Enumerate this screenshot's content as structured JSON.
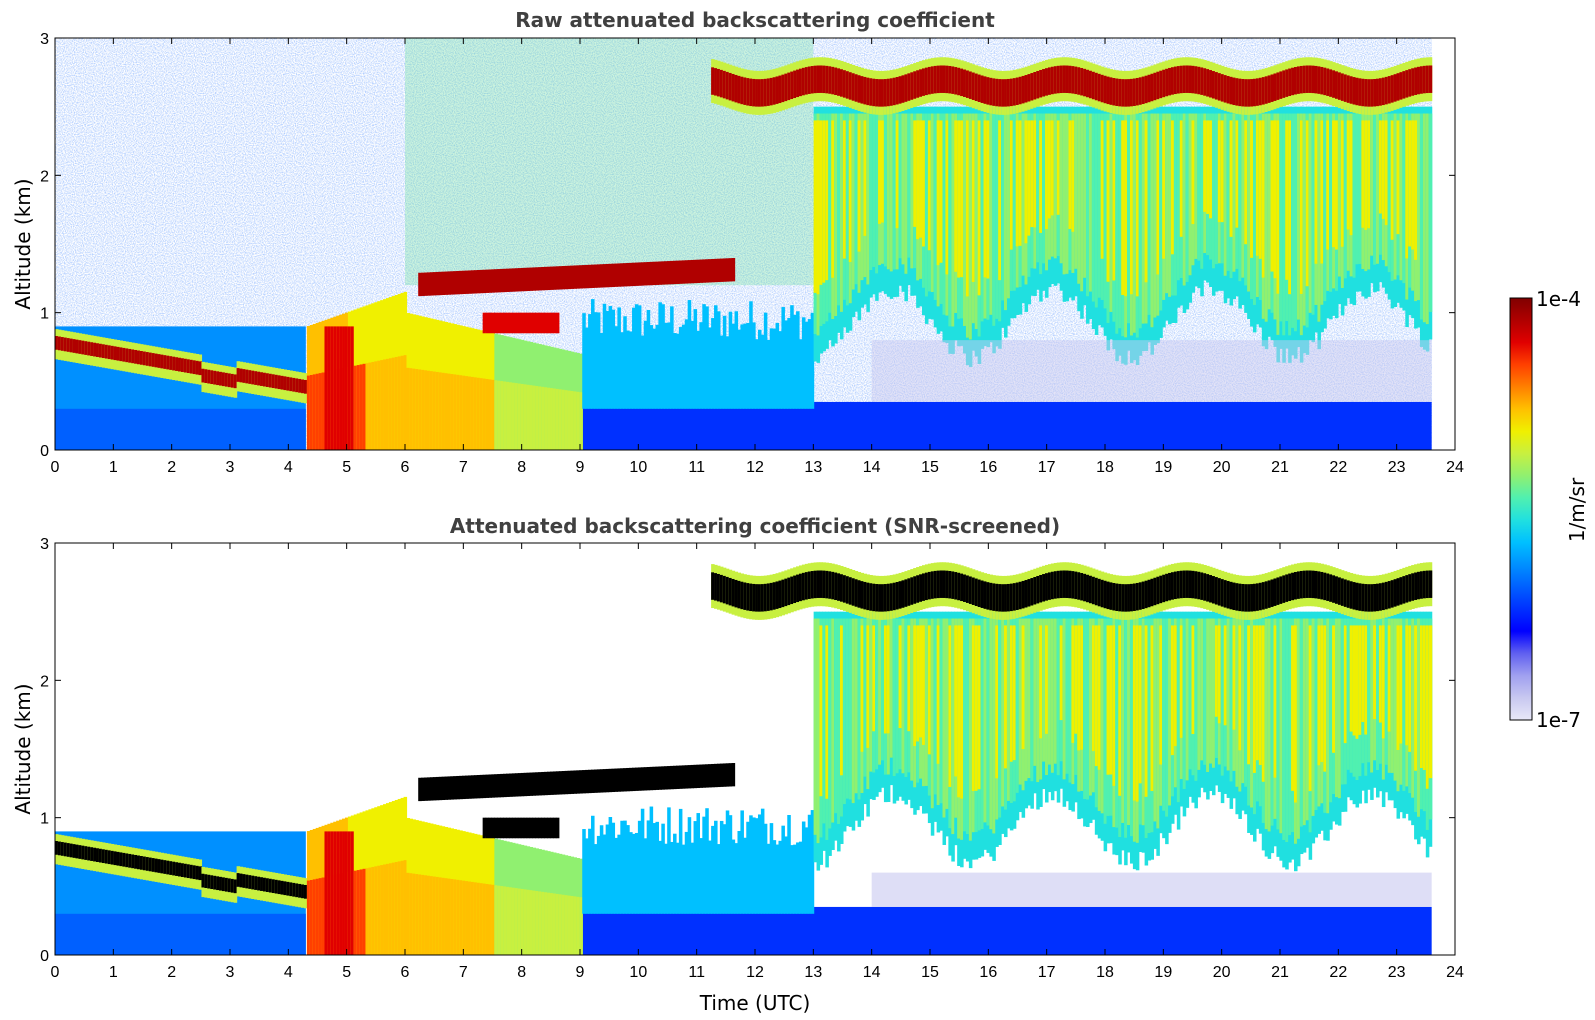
{
  "chart_data": [
    {
      "type": "heatmap",
      "title": "Raw attenuated backscattering coefficient",
      "xlabel": "",
      "ylabel": "Altitude (km)",
      "xlim": [
        0,
        24
      ],
      "ylim": [
        0,
        3
      ],
      "xticks": [
        "0",
        "1",
        "2",
        "3",
        "4",
        "5",
        "6",
        "7",
        "8",
        "9",
        "10",
        "11",
        "12",
        "13",
        "14",
        "15",
        "16",
        "17",
        "18",
        "19",
        "20",
        "21",
        "22",
        "23",
        "24"
      ],
      "yticks": [
        "0",
        "1",
        "2",
        "3"
      ],
      "features": [
        {
          "name": "low cloud layer (descending)",
          "t": [
            0,
            4.3
          ],
          "z": [
            0.8,
            0.45
          ],
          "level": "max"
        },
        {
          "name": "mid cloud layer",
          "t": [
            6.2,
            11.6
          ],
          "z": [
            1.15,
            1.35
          ],
          "level": "max"
        },
        {
          "name": "upper cloud layer",
          "t": [
            11.2,
            23.6
          ],
          "z": [
            2.5,
            2.8
          ],
          "level": "max"
        },
        {
          "name": "aerosol / boundary layer plume",
          "t": [
            4.3,
            9.0
          ],
          "z": [
            0,
            1.0
          ],
          "level": "high"
        },
        {
          "name": "fall streaks",
          "t": [
            13.0,
            23.6
          ],
          "z": [
            0.8,
            2.6
          ],
          "level": "medium"
        }
      ]
    },
    {
      "type": "heatmap",
      "title": "Attenuated backscattering coefficient (SNR-screened)",
      "xlabel": "Time (UTC)",
      "ylabel": "Altitude (km)",
      "xlim": [
        0,
        24
      ],
      "ylim": [
        0,
        3
      ],
      "xticks": [
        "0",
        "1",
        "2",
        "3",
        "4",
        "5",
        "6",
        "7",
        "8",
        "9",
        "10",
        "11",
        "12",
        "13",
        "14",
        "15",
        "16",
        "17",
        "18",
        "19",
        "20",
        "21",
        "22",
        "23",
        "24"
      ],
      "yticks": [
        "0",
        "1",
        "2",
        "3"
      ],
      "features": [
        {
          "name": "low cloud layer (saturated)",
          "t": [
            0,
            4.3
          ],
          "z": [
            0.8,
            0.45
          ],
          "level": "saturated"
        },
        {
          "name": "mid cloud layer (saturated)",
          "t": [
            6.2,
            11.6
          ],
          "z": [
            1.15,
            1.35
          ],
          "level": "saturated"
        },
        {
          "name": "upper cloud layer (saturated)",
          "t": [
            11.2,
            23.6
          ],
          "z": [
            2.5,
            2.8
          ],
          "level": "saturated"
        },
        {
          "name": "aerosol / boundary layer plume",
          "t": [
            4.3,
            9.0
          ],
          "z": [
            0,
            1.0
          ],
          "level": "high"
        },
        {
          "name": "fall streaks",
          "t": [
            13.0,
            23.6
          ],
          "z": [
            0.8,
            2.6
          ],
          "level": "medium"
        }
      ]
    }
  ],
  "colorbar": {
    "label": "1/m/sr",
    "max_label": "1e-4",
    "min_label": "1e-7",
    "colors": [
      "#e8e8f8",
      "#c8c8f0",
      "#a0a0f0",
      "#6060f0",
      "#0000ff",
      "#0030ff",
      "#0060ff",
      "#0090ff",
      "#00c0ff",
      "#20e0e0",
      "#50f0b0",
      "#90f070",
      "#c8f040",
      "#f0f000",
      "#ffc000",
      "#ff8000",
      "#ff4000",
      "#e00000",
      "#b00000",
      "#800000"
    ],
    "screen_color": "#000000"
  }
}
